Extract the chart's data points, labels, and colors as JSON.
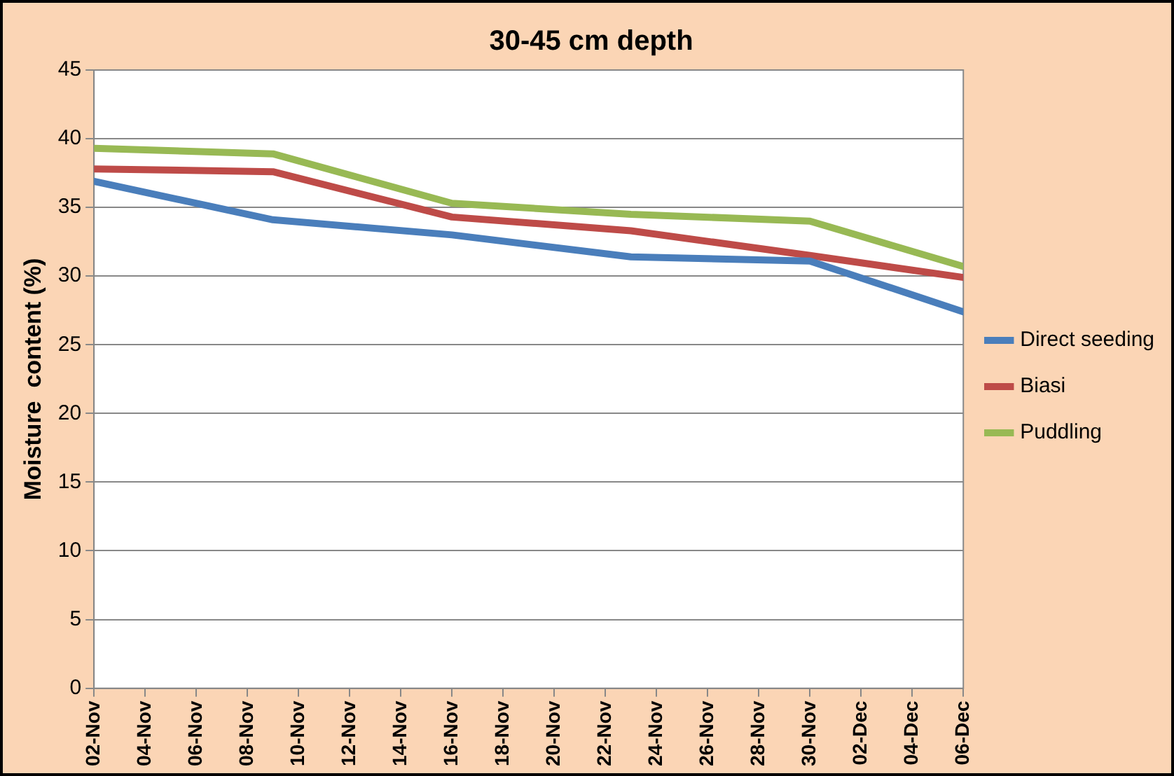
{
  "chart_data": {
    "type": "line",
    "title": "30-45 cm depth",
    "ylabel": "Moisture  content (%)",
    "x": [
      "--11-02",
      "--11-09",
      "--11-16",
      "--11-23",
      "--11-30",
      "--12-06"
    ],
    "series": [
      {
        "name": "Direct seeding",
        "color": "#4a7ebb",
        "values": [
          36.9,
          34.1,
          33.0,
          31.4,
          31.1,
          27.4
        ]
      },
      {
        "name": "Biasi",
        "color": "#be4b48",
        "values": [
          37.8,
          37.6,
          34.3,
          33.3,
          31.5,
          29.9
        ]
      },
      {
        "name": "Puddling",
        "color": "#98b954",
        "values": [
          39.3,
          38.9,
          35.3,
          34.5,
          34.0,
          30.7
        ]
      }
    ],
    "xlim": [
      "--11-02",
      "--12-06"
    ],
    "xticks": [
      {
        "value": "--11-02",
        "label": "02-Nov"
      },
      {
        "value": "--11-04",
        "label": "04-Nov"
      },
      {
        "value": "--11-06",
        "label": "06-Nov"
      },
      {
        "value": "--11-08",
        "label": "08-Nov"
      },
      {
        "value": "--11-10",
        "label": "10-Nov"
      },
      {
        "value": "--11-12",
        "label": "12-Nov"
      },
      {
        "value": "--11-14",
        "label": "14-Nov"
      },
      {
        "value": "--11-16",
        "label": "16-Nov"
      },
      {
        "value": "--11-18",
        "label": "18-Nov"
      },
      {
        "value": "--11-20",
        "label": "20-Nov"
      },
      {
        "value": "--11-22",
        "label": "22-Nov"
      },
      {
        "value": "--11-24",
        "label": "24-Nov"
      },
      {
        "value": "--11-26",
        "label": "26-Nov"
      },
      {
        "value": "--11-28",
        "label": "28-Nov"
      },
      {
        "value": "--11-30",
        "label": "30-Nov"
      },
      {
        "value": "--12-02",
        "label": "02-Dec"
      },
      {
        "value": "--12-04",
        "label": "04-Dec"
      },
      {
        "value": "--12-06",
        "label": "06-Dec"
      }
    ],
    "ylim": [
      0,
      45
    ],
    "yticks": [
      0,
      5,
      10,
      15,
      20,
      25,
      30,
      35,
      40,
      45
    ],
    "grid": "y",
    "legend": "right",
    "marker": "none",
    "line_style": "solid"
  }
}
